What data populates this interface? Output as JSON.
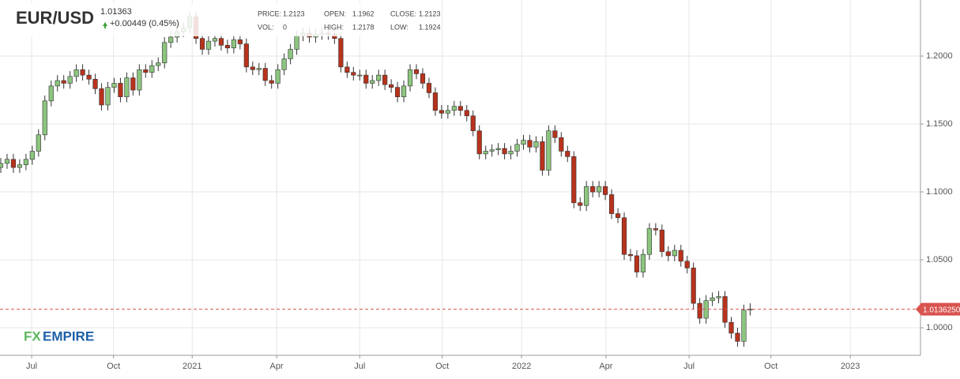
{
  "chart_data": {
    "type": "candlestick",
    "title": "EUR/USD",
    "last_price": "1.01363",
    "change": "+0.00449 (0.45%)",
    "info": [
      {
        "label": "PRICE:",
        "value": "1.2123"
      },
      {
        "label": "OPEN:",
        "value": "1.1962"
      },
      {
        "label": "CLOSE:",
        "value": "1.2123"
      },
      {
        "label": "VOL:",
        "value": "0"
      },
      {
        "label": "HIGH:",
        "value": "1.2178"
      },
      {
        "label": "LOW:",
        "value": "1.1924"
      }
    ],
    "brand": {
      "part1": "FX",
      "part2": "EMPIRE"
    },
    "up_color": "#8cc57e",
    "down_color": "#b8321c",
    "price_line": {
      "value": 1.013625,
      "label": "1.0136250",
      "color": "#d9534f"
    },
    "grid": true,
    "xlim": [
      -0.125,
      146.05
    ],
    "ylim": [
      0.9797,
      1.2413
    ],
    "xticks": [
      {
        "value": 4.9,
        "label": "Jul"
      },
      {
        "value": 17.9,
        "label": "Oct"
      },
      {
        "value": 30.4,
        "label": "2021"
      },
      {
        "value": 43.8,
        "label": "Apr"
      },
      {
        "value": 57.0,
        "label": "Jul"
      },
      {
        "value": 70.1,
        "label": "Oct"
      },
      {
        "value": 82.7,
        "label": "2022"
      },
      {
        "value": 96.1,
        "label": "Apr"
      },
      {
        "value": 109.3,
        "label": "Jul"
      },
      {
        "value": 122.3,
        "label": "Oct"
      },
      {
        "value": 134.9,
        "label": "2023"
      }
    ],
    "yticks": [
      {
        "value": 1.0,
        "label": "1.0000"
      },
      {
        "value": 1.05,
        "label": "1.0500"
      },
      {
        "value": 1.1,
        "label": "1.1000"
      },
      {
        "value": 1.15,
        "label": "1.1500"
      },
      {
        "value": 1.2,
        "label": "1.2000"
      }
    ],
    "categories": [
      null,
      null,
      null,
      null,
      null,
      null,
      null,
      null,
      null,
      null,
      null,
      null,
      null,
      null,
      null,
      null,
      null,
      null,
      null,
      null,
      null,
      null,
      null,
      null,
      null,
      null,
      null,
      null,
      null,
      null,
      null,
      null,
      null,
      null,
      null,
      null,
      null,
      null,
      null,
      null,
      null,
      null,
      null,
      null,
      null,
      null,
      null,
      null,
      null,
      null,
      null,
      null,
      null,
      null,
      null,
      null,
      null,
      null,
      null,
      null,
      null,
      null,
      null,
      null,
      null,
      null,
      null,
      null,
      null,
      null,
      null,
      null,
      null,
      null,
      null,
      null,
      null,
      null,
      null,
      null,
      null,
      null,
      null,
      null,
      null,
      null,
      null,
      null,
      null,
      null,
      null,
      null,
      null,
      null,
      null,
      null,
      null,
      null,
      null,
      null,
      null,
      null,
      null,
      null,
      null,
      null,
      null,
      null,
      null,
      null,
      null,
      null,
      null,
      null,
      null,
      null,
      null,
      null,
      null,
      null
    ],
    "open": [
      1.118,
      1.121,
      1.124,
      1.118,
      1.12,
      1.124,
      1.13,
      1.142,
      1.167,
      1.178,
      1.182,
      1.18,
      1.185,
      1.19,
      1.186,
      1.183,
      1.176,
      1.164,
      1.177,
      1.18,
      1.17,
      1.184,
      1.175,
      1.19,
      1.188,
      1.193,
      1.195,
      1.21,
      1.214,
      1.218,
      1.221,
      1.229,
      1.213,
      1.205,
      1.211,
      1.213,
      1.208,
      1.206,
      1.212,
      1.209,
      1.192,
      1.19,
      1.191,
      1.182,
      1.18,
      1.19,
      1.198,
      1.205,
      1.215,
      1.217,
      1.214,
      1.216,
      1.217,
      1.216,
      1.213,
      1.192,
      1.188,
      1.186,
      1.186,
      1.18,
      1.182,
      1.186,
      1.179,
      1.177,
      1.17,
      1.178,
      1.19,
      1.187,
      1.18,
      1.173,
      1.16,
      1.158,
      1.16,
      1.163,
      1.16,
      1.156,
      1.145,
      1.128,
      1.13,
      1.131,
      1.132,
      1.128,
      1.13,
      1.135,
      1.138,
      1.133,
      1.137,
      1.116,
      1.145,
      1.14,
      1.13,
      1.126,
      1.092,
      1.09,
      1.104,
      1.1,
      1.104,
      1.098,
      1.084,
      1.081,
      1.054,
      1.053,
      1.041,
      1.054,
      1.073,
      1.072,
      1.056,
      1.053,
      1.057,
      1.049,
      1.044,
      1.018,
      1.007,
      1.02,
      1.022,
      1.023,
      1.004,
      0.996,
      0.99,
      1.013
    ],
    "high": [
      1.125,
      1.128,
      1.128,
      1.124,
      1.128,
      1.134,
      1.146,
      1.171,
      1.182,
      1.186,
      1.186,
      1.189,
      1.194,
      1.194,
      1.19,
      1.187,
      1.18,
      1.181,
      1.184,
      1.184,
      1.188,
      1.188,
      1.194,
      1.194,
      1.197,
      1.199,
      1.214,
      1.218,
      1.222,
      1.225,
      1.233,
      1.233,
      1.217,
      1.215,
      1.217,
      1.217,
      1.212,
      1.216,
      1.216,
      1.213,
      1.196,
      1.195,
      1.195,
      1.186,
      1.194,
      1.202,
      1.209,
      1.219,
      1.221,
      1.221,
      1.22,
      1.221,
      1.221,
      1.22,
      1.217,
      1.196,
      1.192,
      1.19,
      1.19,
      1.186,
      1.19,
      1.19,
      1.183,
      1.181,
      1.182,
      1.194,
      1.194,
      1.191,
      1.184,
      1.177,
      1.164,
      1.164,
      1.167,
      1.167,
      1.164,
      1.16,
      1.149,
      1.134,
      1.135,
      1.136,
      1.136,
      1.134,
      1.139,
      1.142,
      1.142,
      1.141,
      1.141,
      1.149,
      1.149,
      1.144,
      1.134,
      1.13,
      1.096,
      1.108,
      1.108,
      1.108,
      1.108,
      1.102,
      1.088,
      1.085,
      1.058,
      1.057,
      1.058,
      1.077,
      1.077,
      1.076,
      1.06,
      1.061,
      1.061,
      1.053,
      1.048,
      1.022,
      1.024,
      1.026,
      1.027,
      1.027,
      1.008,
      1.0,
      1.017,
      1.018
    ],
    "low": [
      1.114,
      1.117,
      1.114,
      1.114,
      1.116,
      1.12,
      1.126,
      1.138,
      1.163,
      1.174,
      1.176,
      1.176,
      1.181,
      1.182,
      1.179,
      1.172,
      1.16,
      1.16,
      1.173,
      1.166,
      1.166,
      1.171,
      1.171,
      1.184,
      1.184,
      1.189,
      1.191,
      1.206,
      1.21,
      1.214,
      1.217,
      1.209,
      1.201,
      1.201,
      1.207,
      1.204,
      1.202,
      1.202,
      1.205,
      1.188,
      1.186,
      1.186,
      1.178,
      1.176,
      1.176,
      1.186,
      1.194,
      1.201,
      1.211,
      1.21,
      1.21,
      1.212,
      1.212,
      1.209,
      1.188,
      1.184,
      1.182,
      1.182,
      1.176,
      1.176,
      1.178,
      1.175,
      1.173,
      1.166,
      1.166,
      1.174,
      1.183,
      1.176,
      1.169,
      1.156,
      1.154,
      1.154,
      1.156,
      1.156,
      1.152,
      1.141,
      1.124,
      1.124,
      1.126,
      1.127,
      1.124,
      1.124,
      1.126,
      1.131,
      1.129,
      1.129,
      1.112,
      1.112,
      1.136,
      1.126,
      1.122,
      1.088,
      1.086,
      1.086,
      1.096,
      1.096,
      1.094,
      1.08,
      1.077,
      1.05,
      1.049,
      1.037,
      1.037,
      1.05,
      1.068,
      1.052,
      1.049,
      1.049,
      1.045,
      1.04,
      1.014,
      1.003,
      1.003,
      1.016,
      1.018,
      1.0,
      0.992,
      0.986,
      0.986,
      1.009
    ],
    "close": [
      1.121,
      1.124,
      1.118,
      1.12,
      1.124,
      1.13,
      1.142,
      1.167,
      1.178,
      1.182,
      1.18,
      1.185,
      1.19,
      1.186,
      1.183,
      1.176,
      1.164,
      1.177,
      1.18,
      1.17,
      1.184,
      1.175,
      1.19,
      1.188,
      1.193,
      1.195,
      1.21,
      1.214,
      1.218,
      1.221,
      1.229,
      1.213,
      1.205,
      1.211,
      1.213,
      1.208,
      1.206,
      1.212,
      1.209,
      1.192,
      1.19,
      1.191,
      1.182,
      1.18,
      1.19,
      1.198,
      1.205,
      1.215,
      1.217,
      1.214,
      1.216,
      1.217,
      1.216,
      1.213,
      1.192,
      1.188,
      1.186,
      1.186,
      1.18,
      1.182,
      1.186,
      1.179,
      1.177,
      1.17,
      1.178,
      1.19,
      1.187,
      1.18,
      1.173,
      1.16,
      1.158,
      1.16,
      1.163,
      1.16,
      1.156,
      1.145,
      1.128,
      1.13,
      1.131,
      1.132,
      1.128,
      1.13,
      1.135,
      1.138,
      1.133,
      1.137,
      1.116,
      1.145,
      1.14,
      1.13,
      1.126,
      1.092,
      1.09,
      1.104,
      1.1,
      1.104,
      1.098,
      1.084,
      1.081,
      1.054,
      1.053,
      1.041,
      1.054,
      1.073,
      1.072,
      1.056,
      1.053,
      1.057,
      1.049,
      1.044,
      1.018,
      1.007,
      1.02,
      1.022,
      1.023,
      1.004,
      0.996,
      0.99,
      1.013,
      1.0136
    ]
  }
}
